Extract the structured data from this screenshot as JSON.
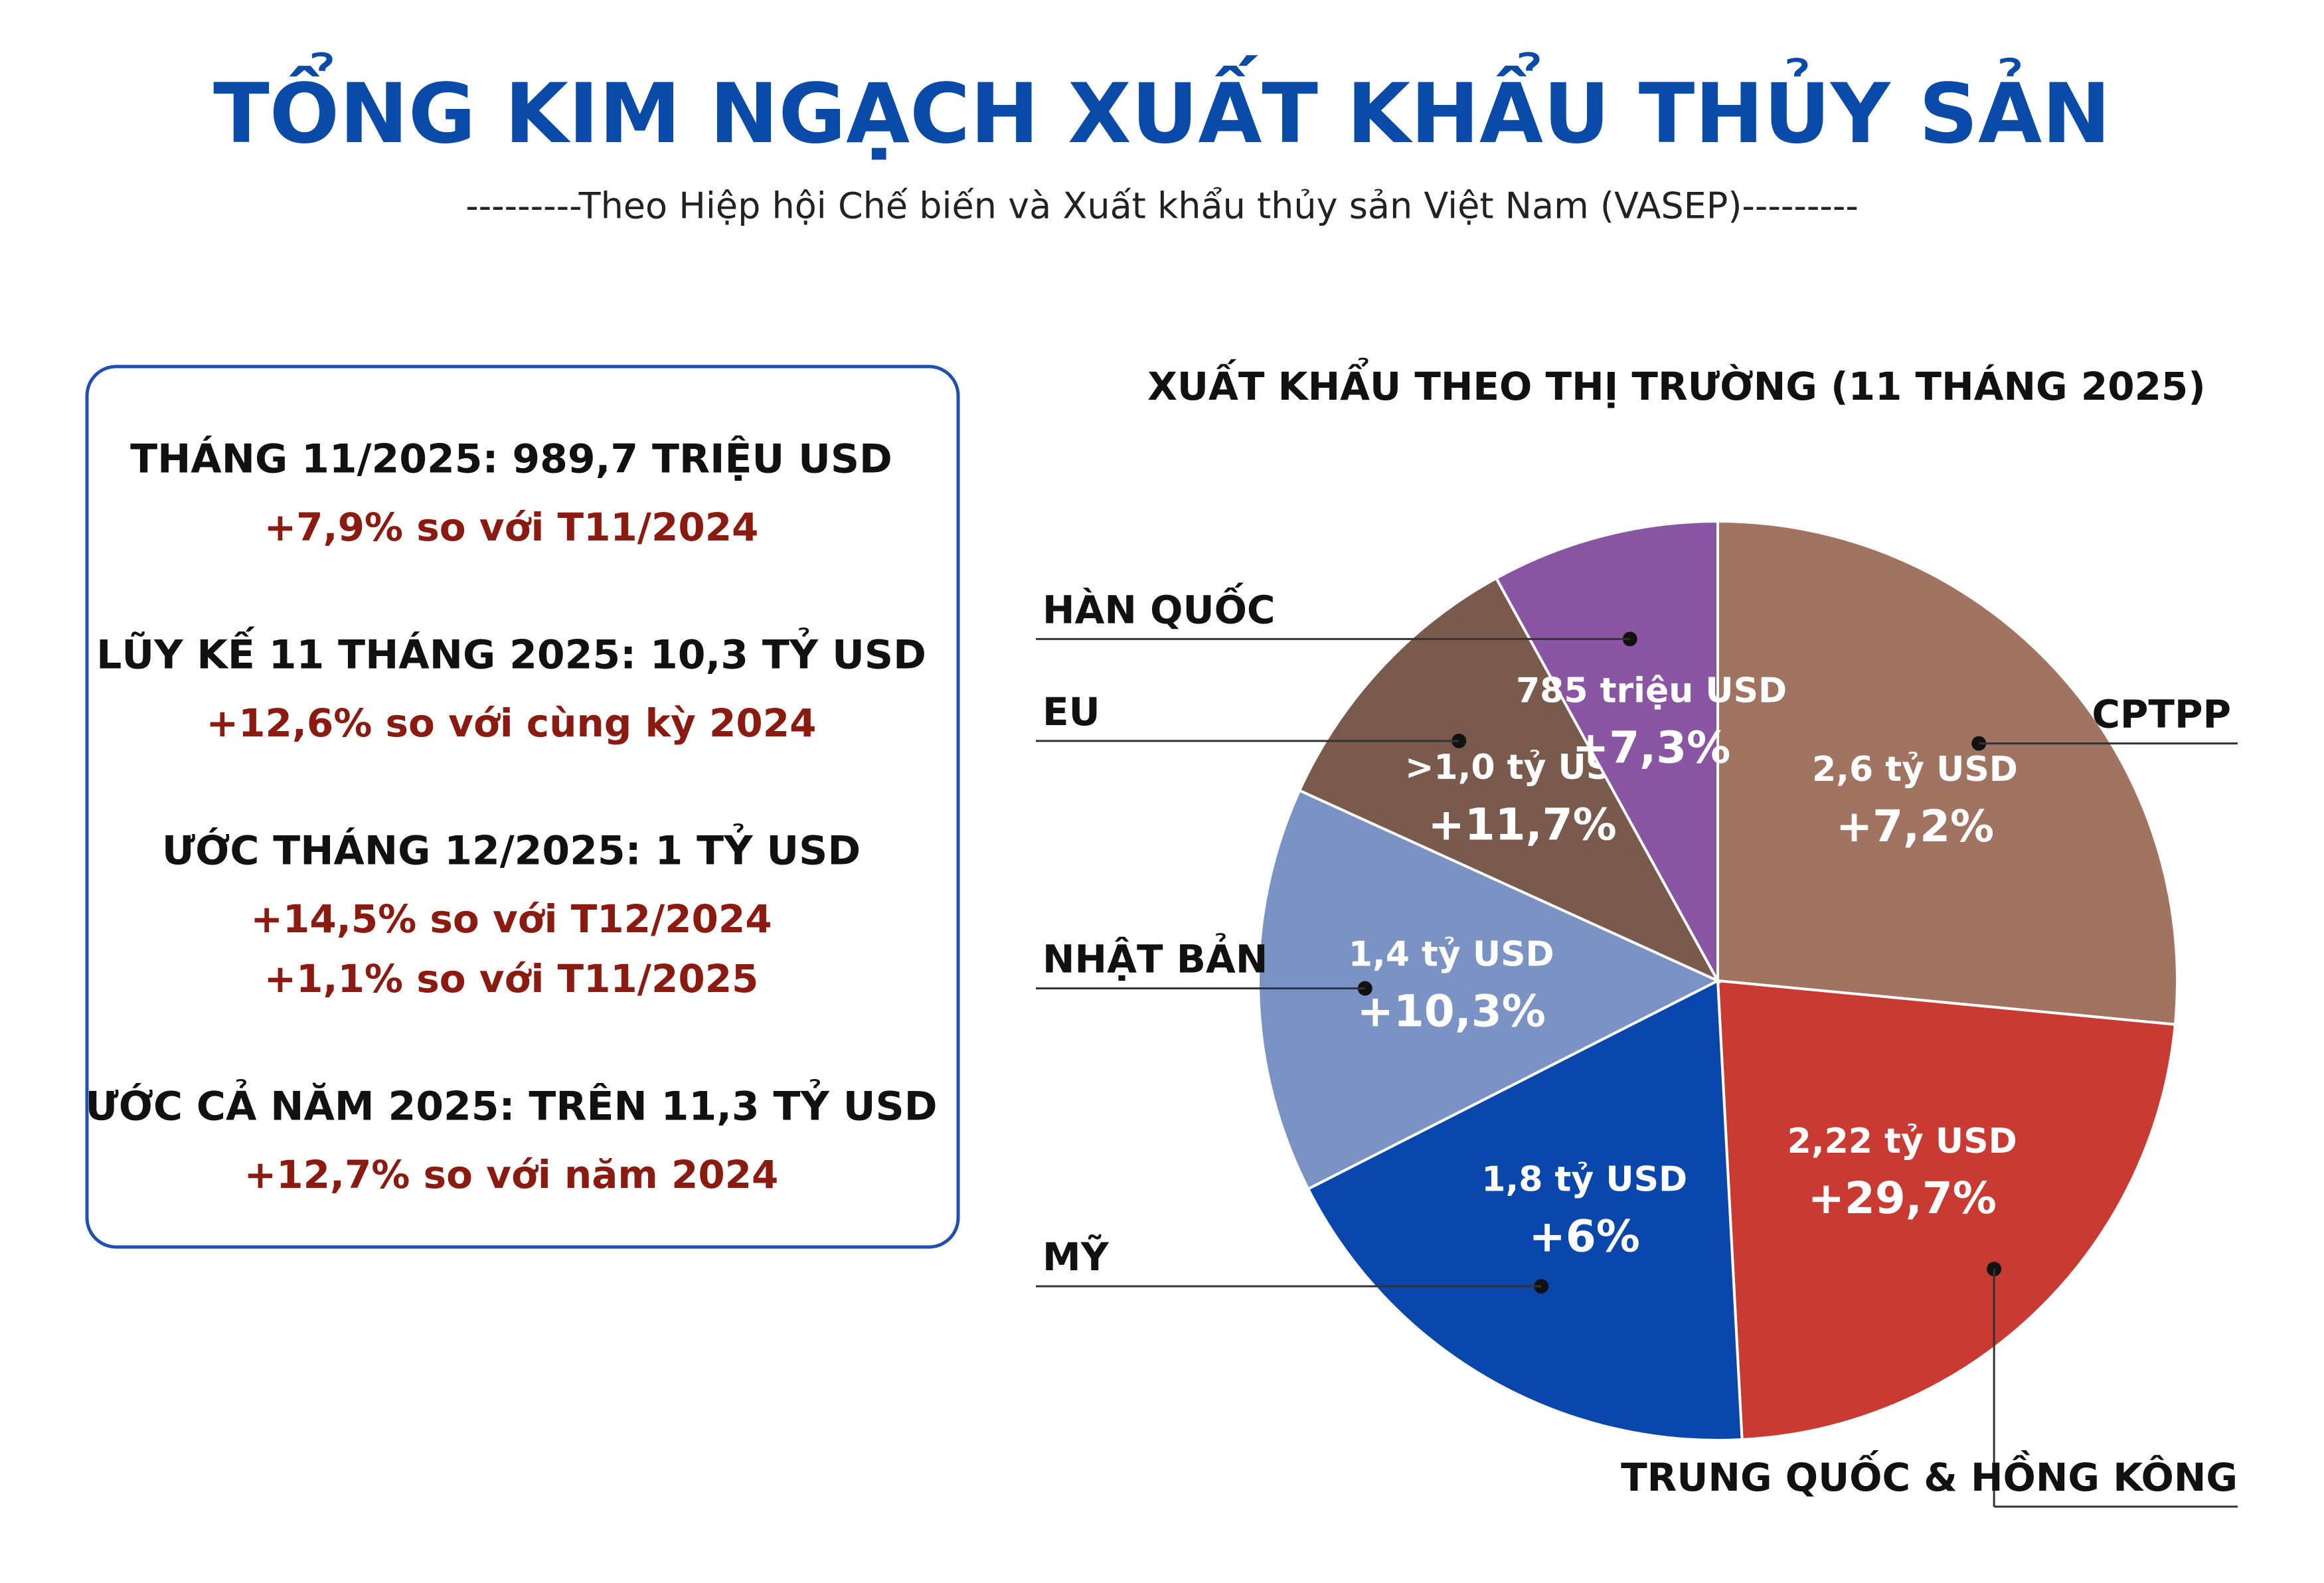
{
  "header": {
    "title": "TỔNG KIM NGẠCH XUẤT KHẨU THỦY SẢN",
    "subtitle": "---------Theo Hiệp hội Chế biến và Xuất khẩu thủy sản Việt Nam (VASEP)---------"
  },
  "left_panel": [
    {
      "heading": "THÁNG 11/2025: 989,7 TRIỆU USD",
      "lines": [
        "+7,9% so với T11/2024"
      ]
    },
    {
      "heading": "LŨY KẾ 11 THÁNG 2025: 10,3 TỶ USD",
      "lines": [
        "+12,6% so với cùng kỳ 2024"
      ]
    },
    {
      "heading": "ƯỚC THÁNG 12/2025: 1 TỶ USD",
      "lines": [
        "+14,5% so với T12/2024",
        "+1,1% so với T11/2025"
      ]
    },
    {
      "heading": "ƯỚC CẢ NĂM 2025: TRÊN 11,3 TỶ USD",
      "lines": [
        "+12,7% so với năm 2024"
      ]
    }
  ],
  "chart_data": {
    "type": "pie",
    "title": "XUẤT KHẨU THEO THỊ TRƯỜNG (11 THÁNG 2025)",
    "categories": [
      "CPTPP",
      "TRUNG QUỐC & HỒNG KÔNG",
      "MỸ",
      "NHẬT BẢN",
      "EU",
      "HÀN QUỐC"
    ],
    "values": [
      2.6,
      2.22,
      1.8,
      1.4,
      1.0,
      0.785
    ],
    "value_labels": [
      "2,6 tỷ USD",
      "2,22 tỷ USD",
      "1,8 tỷ USD",
      "1,4 tỷ USD",
      ">1,0 tỷ USD",
      "785 triệu USD"
    ],
    "growth_labels": [
      "+7,2%",
      "+29,7%",
      "+6%",
      "+10,3%",
      "+11,7%",
      "+7,3%"
    ],
    "colors": [
      "#a07460",
      "#c93a33",
      "#0a47ad",
      "#7b92c4",
      "#7a5a4c",
      "#8a56a3"
    ]
  }
}
